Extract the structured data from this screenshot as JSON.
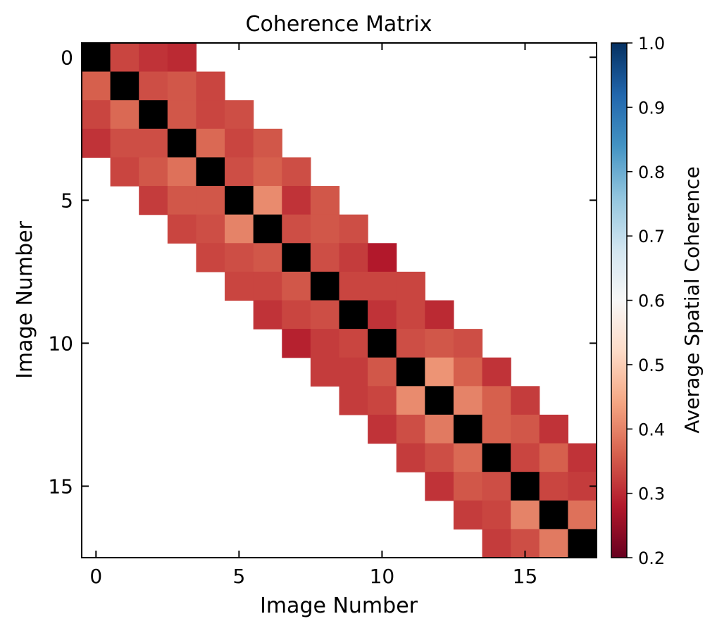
{
  "chart_data": {
    "type": "heatmap",
    "title": "Coherence Matrix",
    "xlabel": "Image Number",
    "ylabel": "Image Number",
    "x_ticks": [
      0,
      5,
      10,
      15
    ],
    "y_ticks": [
      0,
      5,
      10,
      15
    ],
    "x_range": [
      -0.5,
      17.5
    ],
    "y_range": [
      -0.5,
      17.5
    ],
    "y_inverted": true,
    "size": 18,
    "band_width": 3,
    "diagonal_color": "#000000",
    "missing_color": "#ffffff",
    "colormap": "RdBu",
    "colorbar": {
      "label": "Average Spatial Coherence",
      "min": 0.2,
      "max": 1.0,
      "ticks": [
        0.2,
        0.3,
        0.4,
        0.5,
        0.6,
        0.7,
        0.8,
        0.9,
        1.0
      ],
      "tick_labels": [
        "0.2",
        "0.3",
        "0.4",
        "0.5",
        "0.6",
        "0.7",
        "0.8",
        "0.9",
        "1.0"
      ]
    },
    "upper_offsets": {
      "d1": [
        0.33,
        0.34,
        0.35,
        0.37,
        0.34,
        0.41,
        0.34,
        0.34,
        0.33,
        0.31,
        0.34,
        0.42,
        0.4,
        0.36,
        0.33,
        0.33,
        0.38
      ],
      "d2": [
        0.31,
        0.35,
        0.33,
        0.33,
        0.36,
        0.31,
        0.35,
        0.32,
        0.33,
        0.33,
        0.35,
        0.36,
        0.36,
        0.35,
        0.36,
        0.32
      ],
      "d3": [
        0.3,
        0.33,
        0.34,
        0.35,
        0.34,
        0.35,
        0.34,
        0.28,
        0.33,
        0.3,
        0.34,
        0.31,
        0.32,
        0.31,
        0.31
      ]
    },
    "lower_offsets": {
      "d1": [
        0.36,
        0.37,
        0.34,
        0.38,
        0.35,
        0.4,
        0.35,
        0.35,
        0.34,
        0.33,
        0.35,
        0.41,
        0.39,
        0.37,
        0.34,
        0.4,
        0.39
      ],
      "d2": [
        0.33,
        0.34,
        0.35,
        0.35,
        0.34,
        0.34,
        0.33,
        0.33,
        0.32,
        0.32,
        0.33,
        0.34,
        0.34,
        0.35,
        0.33,
        0.34
      ],
      "d3": [
        0.31,
        0.33,
        0.32,
        0.33,
        0.33,
        0.33,
        0.31,
        0.29,
        0.32,
        0.32,
        0.31,
        0.32,
        0.31,
        0.32,
        0.32
      ]
    }
  }
}
